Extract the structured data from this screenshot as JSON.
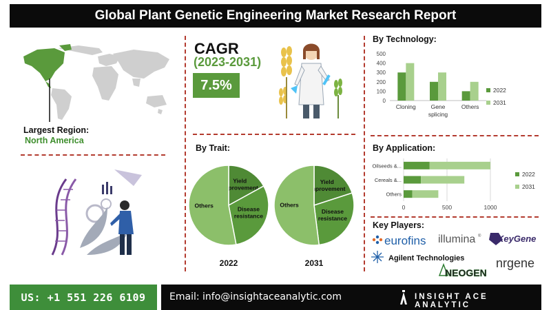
{
  "header": {
    "title": "Global Plant Genetic Engineering Market Research Report"
  },
  "region": {
    "label": "Largest Region:",
    "value": "North America"
  },
  "cagr": {
    "label": "CAGR",
    "years": "(2023-2031)",
    "value": "7.5%"
  },
  "by_trait": {
    "title": "By Trait:"
  },
  "by_technology": {
    "title": "By Technology:"
  },
  "by_application": {
    "title": "By Application:"
  },
  "key_players": {
    "title": "Key Players:",
    "logos": [
      "eurofins",
      "illumina",
      "KeyGene",
      "Agilent Technologies",
      "NEOGEN",
      "nrgene"
    ]
  },
  "footer": {
    "phone": "US: +1 551 226 6109",
    "email": "Email: info@insightaceanalytic.com",
    "brand": "INSIGHT ACE ANALYTIC"
  },
  "colors": {
    "dark_green": "#5a9a3c",
    "light_green": "#a8d08d",
    "accent_dash": "#b33a2e"
  },
  "chart_data": [
    {
      "type": "pie",
      "title": "By Trait:",
      "caption": "2022",
      "slices": [
        {
          "label": "Yield improvement",
          "value": 17
        },
        {
          "label": "Disease resistance",
          "value": 30
        },
        {
          "label": "Others",
          "value": 53
        }
      ]
    },
    {
      "type": "pie",
      "title": "By Trait:",
      "caption": "2031",
      "slices": [
        {
          "label": "Yield improvement",
          "value": 20
        },
        {
          "label": "Disease resistance",
          "value": 28
        },
        {
          "label": "Others",
          "value": 52
        }
      ]
    },
    {
      "type": "bar",
      "title": "By Technology:",
      "categories": [
        "Cloning",
        "Gene splicing",
        "Others"
      ],
      "category_lines": [
        [
          "Cloning"
        ],
        [
          "Gene",
          "splicing"
        ],
        [
          "Others"
        ]
      ],
      "series": [
        {
          "name": "2022",
          "values": [
            300,
            200,
            100
          ]
        },
        {
          "name": "2031",
          "values": [
            400,
            300,
            200
          ]
        }
      ],
      "ylim": [
        0,
        500
      ],
      "yticks": [
        0,
        100,
        200,
        300,
        400,
        500
      ],
      "grid": false,
      "legend": "right"
    },
    {
      "type": "bar",
      "orientation": "horizontal",
      "title": "By Application:",
      "categories": [
        "Oilseeds &...",
        "Cereals &...",
        "Others"
      ],
      "series": [
        {
          "name": "2022",
          "values": [
            300,
            200,
            100
          ]
        },
        {
          "name": "2031",
          "values": [
            700,
            500,
            300
          ]
        }
      ],
      "stacked": true,
      "xlim": [
        0,
        1000
      ],
      "xticks": [
        0,
        500,
        1000
      ],
      "grid": true,
      "legend": "right"
    }
  ]
}
